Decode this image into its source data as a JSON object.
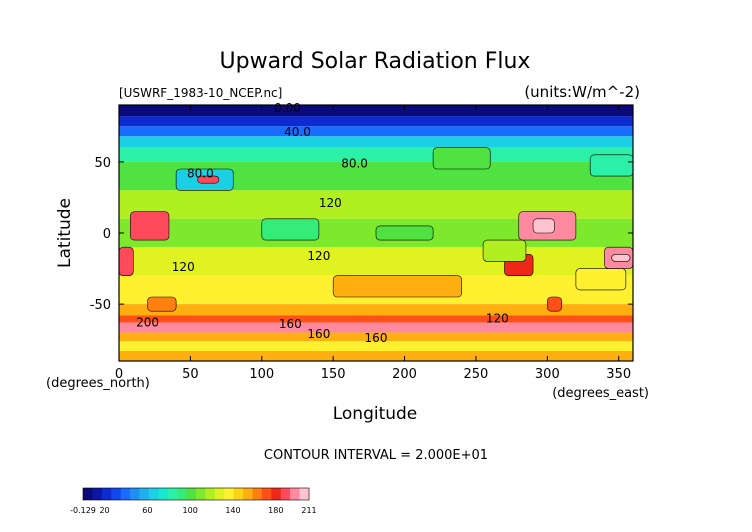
{
  "chart_data": {
    "type": "heatmap",
    "title": "Upward Solar Radiation Flux",
    "file_label": "[USWRF_1983-10_NCEP.nc]",
    "units_label": "(units:W/m^-2)",
    "xlabel": "Longitude",
    "ylabel": "Latitude",
    "x_unit_label": "(degrees_east)",
    "y_unit_label": "(degrees_north)",
    "xlim": [
      0,
      360
    ],
    "ylim": [
      -90,
      90
    ],
    "x_ticks": [
      "0",
      "50",
      "100",
      "150",
      "200",
      "250",
      "300",
      "350"
    ],
    "y_ticks": [
      "50",
      "0",
      "-50"
    ],
    "contour_interval_text": "CONTOUR INTERVAL = 2.000E+01",
    "contour_labels": [
      {
        "text": "0.00",
        "lon": 118,
        "lat": 88
      },
      {
        "text": "40.0",
        "lon": 125,
        "lat": 71
      },
      {
        "text": "80.0",
        "lon": 165,
        "lat": 49
      },
      {
        "text": "80.0",
        "lon": 57,
        "lat": 42
      },
      {
        "text": "120",
        "lon": 148,
        "lat": 21
      },
      {
        "text": "120",
        "lon": 45,
        "lat": -24
      },
      {
        "text": "120",
        "lon": 140,
        "lat": -16
      },
      {
        "text": "120",
        "lon": 265,
        "lat": -60
      },
      {
        "text": "160",
        "lon": 120,
        "lat": -64
      },
      {
        "text": "160",
        "lon": 140,
        "lat": -71
      },
      {
        "text": "160",
        "lon": 180,
        "lat": -74
      },
      {
        "text": "200",
        "lon": 20,
        "lat": -63
      }
    ],
    "colorbar": {
      "min_label": "-0.129",
      "max_label": "211",
      "tick_labels": [
        "20",
        "60",
        "100",
        "140",
        "180"
      ],
      "tick_values": [
        20,
        60,
        100,
        140,
        180
      ],
      "min": -0.129,
      "max": 211,
      "colors": [
        "#0a0a7a",
        "#0b17a3",
        "#0d2bd0",
        "#1048f0",
        "#1a6bff",
        "#1f8ff5",
        "#1fb0ef",
        "#1bd0e5",
        "#18e8d0",
        "#2cf0a8",
        "#36ec78",
        "#4fe240",
        "#7ee82c",
        "#b0f020",
        "#e0f220",
        "#fff030",
        "#ffd21a",
        "#ffb010",
        "#ff8010",
        "#ff5018",
        "#ee2818",
        "#ff4a5c",
        "#ff8aa0",
        "#ffc4cf"
      ]
    },
    "zonal_bands": [
      {
        "lat_top": 90,
        "lat_bottom": 82,
        "value": 5
      },
      {
        "lat_top": 82,
        "lat_bottom": 75,
        "value": 25
      },
      {
        "lat_top": 75,
        "lat_bottom": 68,
        "value": 40
      },
      {
        "lat_top": 68,
        "lat_bottom": 60,
        "value": 65
      },
      {
        "lat_top": 60,
        "lat_bottom": 50,
        "value": 85
      },
      {
        "lat_top": 50,
        "lat_bottom": 30,
        "value": 105
      },
      {
        "lat_top": 30,
        "lat_bottom": 10,
        "value": 115
      },
      {
        "lat_top": 10,
        "lat_bottom": -10,
        "value": 110
      },
      {
        "lat_top": -10,
        "lat_bottom": -30,
        "value": 125
      },
      {
        "lat_top": -30,
        "lat_bottom": -50,
        "value": 135
      },
      {
        "lat_top": -50,
        "lat_bottom": -58,
        "value": 150
      },
      {
        "lat_top": -58,
        "lat_bottom": -63,
        "value": 170
      },
      {
        "lat_top": -63,
        "lat_bottom": -70,
        "value": 195
      },
      {
        "lat_top": -70,
        "lat_bottom": -76,
        "value": 155
      },
      {
        "lat_top": -76,
        "lat_bottom": -83,
        "value": 140
      },
      {
        "lat_top": -83,
        "lat_bottom": -90,
        "value": 150
      }
    ],
    "patches": [
      {
        "lon": [
          8,
          35
        ],
        "lat": [
          15,
          -5
        ],
        "value": 185
      },
      {
        "lon": [
          0,
          10
        ],
        "lat": [
          -10,
          -30
        ],
        "value": 190
      },
      {
        "lon": [
          280,
          320
        ],
        "lat": [
          15,
          -5
        ],
        "value": 195
      },
      {
        "lon": [
          290,
          305
        ],
        "lat": [
          10,
          0
        ],
        "value": 205
      },
      {
        "lon": [
          270,
          290
        ],
        "lat": [
          -15,
          -30
        ],
        "value": 180
      },
      {
        "lon": [
          255,
          285
        ],
        "lat": [
          -5,
          -20
        ],
        "value": 120
      },
      {
        "lon": [
          40,
          80
        ],
        "lat": [
          45,
          30
        ],
        "value": 70
      },
      {
        "lon": [
          55,
          70
        ],
        "lat": [
          40,
          35
        ],
        "value": 185
      },
      {
        "lon": [
          150,
          240
        ],
        "lat": [
          -30,
          -45
        ],
        "value": 150
      },
      {
        "lon": [
          320,
          355
        ],
        "lat": [
          -25,
          -40
        ],
        "value": 140
      },
      {
        "lon": [
          340,
          360
        ],
        "lat": [
          -10,
          -25
        ],
        "value": 200
      },
      {
        "lon": [
          345,
          358
        ],
        "lat": [
          -15,
          -20
        ],
        "value": 211
      },
      {
        "lon": [
          330,
          360
        ],
        "lat": [
          55,
          40
        ],
        "value": 80
      },
      {
        "lon": [
          220,
          260
        ],
        "lat": [
          60,
          45
        ],
        "value": 100
      },
      {
        "lon": [
          100,
          140
        ],
        "lat": [
          10,
          -5
        ],
        "value": 95
      },
      {
        "lon": [
          180,
          220
        ],
        "lat": [
          5,
          -5
        ],
        "value": 100
      },
      {
        "lon": [
          20,
          40
        ],
        "lat": [
          -45,
          -55
        ],
        "value": 165
      },
      {
        "lon": [
          300,
          310
        ],
        "lat": [
          -45,
          -55
        ],
        "value": 175
      }
    ]
  }
}
